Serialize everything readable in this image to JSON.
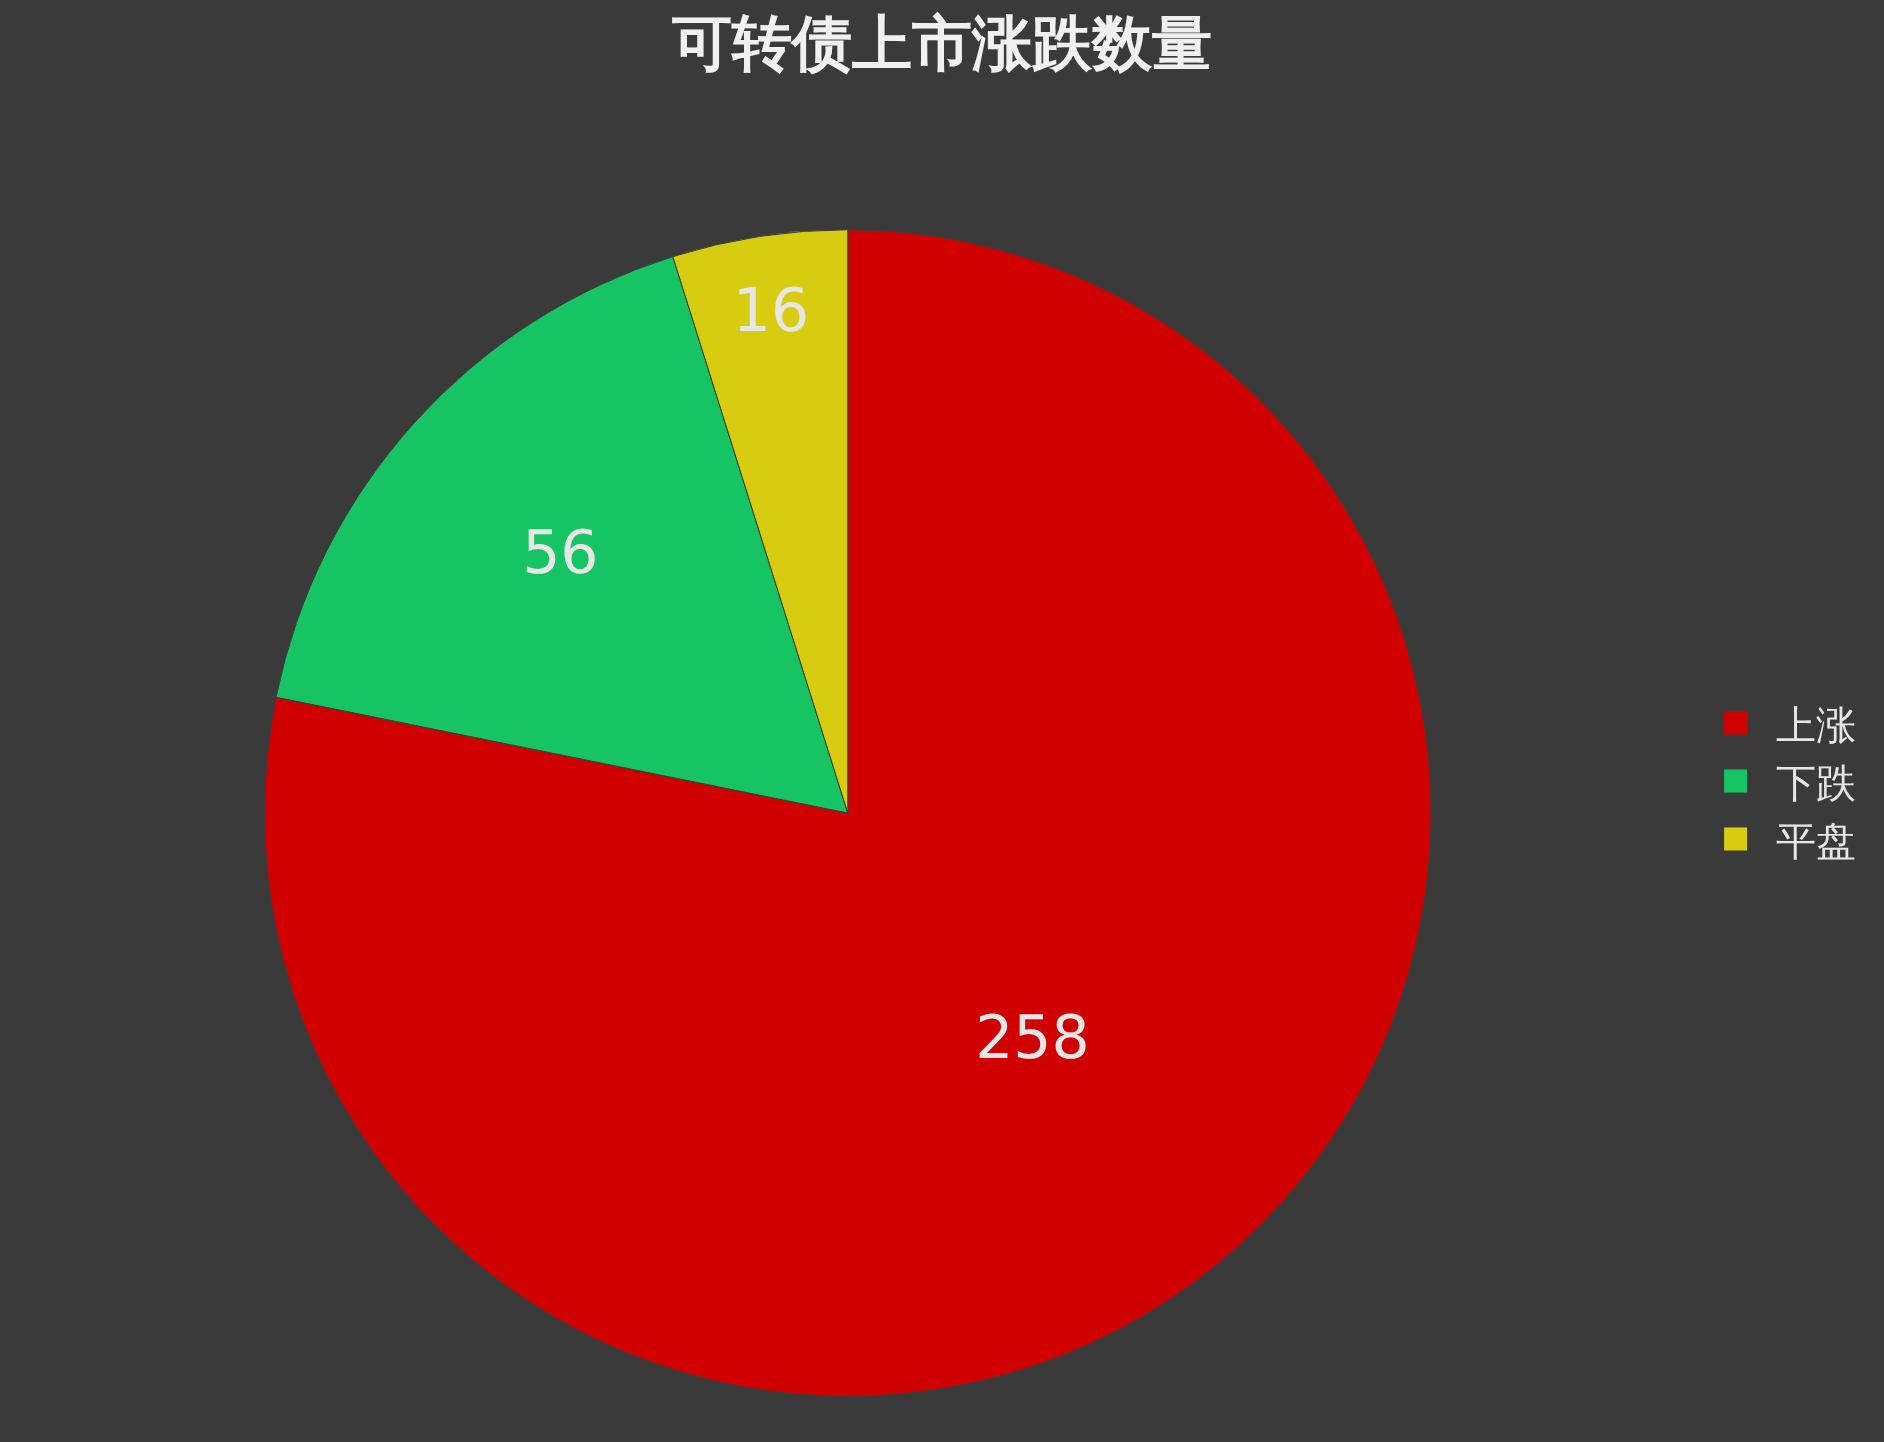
{
  "chart_data": {
    "type": "pie",
    "title": "可转债上市涨跌数量",
    "categories": [
      "上涨",
      "下跌",
      "平盘"
    ],
    "values": [
      258,
      56,
      16
    ],
    "colors": [
      "#d00000",
      "#16c464",
      "#d8cc10"
    ],
    "data_labels": true,
    "legend": "right"
  }
}
